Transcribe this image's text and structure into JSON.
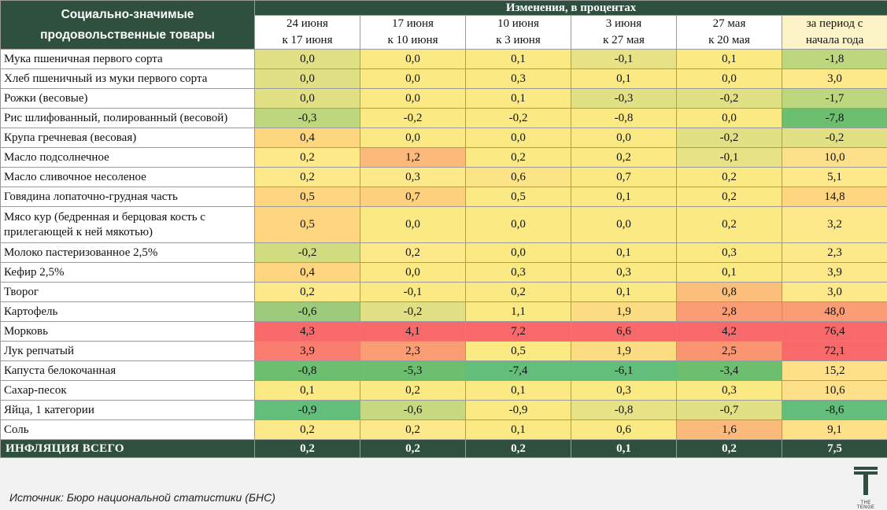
{
  "header": {
    "goods_title": "Социально-значимые продовольственные товары",
    "changes_title": "Изменения, в процентах",
    "periods": [
      {
        "line1": "24 июня",
        "line2": "к 17 июня"
      },
      {
        "line1": "17 июня",
        "line2": "к 10 июня"
      },
      {
        "line1": "10 июня",
        "line2": "к 3 июня"
      },
      {
        "line1": "3 июня",
        "line2": "к 27 мая"
      },
      {
        "line1": "27 мая",
        "line2": "к 20 мая"
      },
      {
        "line1": "за период с",
        "line2": "начала года"
      }
    ]
  },
  "rows": [
    {
      "name": "Мука пшеничная первого сорта",
      "values": [
        "0,0",
        "0,0",
        "0,1",
        "-0,1",
        "0,1",
        "-1,8"
      ],
      "colors": [
        "#e2e084",
        "#fbe984",
        "#fbe984",
        "#e8e287",
        "#fbe984",
        "#bdd77f"
      ]
    },
    {
      "name": "Хлеб пшеничный из муки первого сорта",
      "values": [
        "0,0",
        "0,0",
        "0,3",
        "0,1",
        "0,0",
        "3,0"
      ],
      "colors": [
        "#e2e084",
        "#fbe984",
        "#fbe984",
        "#fbe984",
        "#fbe984",
        "#fde88a"
      ]
    },
    {
      "name": "Рожки (весовые)",
      "values": [
        "0,0",
        "0,0",
        "0,1",
        "-0,3",
        "-0,2",
        "-1,7"
      ],
      "colors": [
        "#e2e084",
        "#fbe984",
        "#fbe984",
        "#e2e084",
        "#e2e084",
        "#bdd77f"
      ]
    },
    {
      "name": "Рис шлифованный, полированный (весовой)",
      "values": [
        "-0,3",
        "-0,2",
        "-0,2",
        "-0,8",
        "0,0",
        "-7,8"
      ],
      "colors": [
        "#bdd77f",
        "#fbe984",
        "#fbe984",
        "#fbe984",
        "#fbe984",
        "#6bbf6f"
      ]
    },
    {
      "name": "Крупа гречневая (весовая)",
      "values": [
        "0,4",
        "0,0",
        "0,0",
        "0,0",
        "-0,2",
        "-0,2"
      ],
      "colors": [
        "#fdd67f",
        "#fbe984",
        "#fbe984",
        "#fbe984",
        "#e2e084",
        "#e2e084"
      ]
    },
    {
      "name": "Масло подсолнечное",
      "values": [
        "0,2",
        "1,2",
        "0,2",
        "0,2",
        "-0,1",
        "10,0"
      ],
      "colors": [
        "#fde88a",
        "#fbb97b",
        "#fbe984",
        "#fbe984",
        "#e8e287",
        "#fde08a"
      ]
    },
    {
      "name": "Масло сливочное несоленое",
      "values": [
        "0,2",
        "0,3",
        "0,6",
        "0,7",
        "0,2",
        "5,1"
      ],
      "colors": [
        "#fde88a",
        "#fde88a",
        "#fce486",
        "#fbe984",
        "#fbe984",
        "#fde88a"
      ]
    },
    {
      "name": "Говядина лопаточно-грудная часть",
      "values": [
        "0,5",
        "0,7",
        "0,5",
        "0,1",
        "0,2",
        "14,8"
      ],
      "colors": [
        "#fdd67f",
        "#fcd07d",
        "#fbe984",
        "#fbe984",
        "#fbe984",
        "#fdd67f"
      ]
    },
    {
      "name": "Мясо кур (бедренная и берцовая кость с прилегающей к ней мякотью)",
      "values": [
        "0,5",
        "0,0",
        "0,0",
        "0,0",
        "0,2",
        "3,2"
      ],
      "colors": [
        "#fdd67f",
        "#fbe984",
        "#fbe984",
        "#fbe984",
        "#fbe984",
        "#fde88a"
      ]
    },
    {
      "name": "Молоко пастеризованное 2,5%",
      "values": [
        "-0,2",
        "0,2",
        "0,0",
        "0,1",
        "0,3",
        "2,3"
      ],
      "colors": [
        "#d1dc80",
        "#fde88a",
        "#fbe984",
        "#fbe984",
        "#fbe984",
        "#fde88a"
      ]
    },
    {
      "name": "Кефир 2,5%",
      "values": [
        "0,4",
        "0,0",
        "0,3",
        "0,3",
        "0,1",
        "3,9"
      ],
      "colors": [
        "#fdd67f",
        "#fbe984",
        "#fbe984",
        "#fbe984",
        "#fbe984",
        "#fde88a"
      ]
    },
    {
      "name": "Творог",
      "values": [
        "0,2",
        "-0,1",
        "0,2",
        "0,1",
        "0,8",
        "3,0"
      ],
      "colors": [
        "#fde88a",
        "#fbe984",
        "#fbe984",
        "#fbe984",
        "#fbbe7b",
        "#fde88a"
      ]
    },
    {
      "name": "Картофель",
      "values": [
        "-0,6",
        "-0,2",
        "1,1",
        "1,9",
        "2,8",
        "48,0"
      ],
      "colors": [
        "#9ccc7b",
        "#e2e084",
        "#fbe984",
        "#fbdc82",
        "#fb9d74",
        "#fb9d74"
      ]
    },
    {
      "name": "Морковь",
      "values": [
        "4,3",
        "4,1",
        "7,2",
        "6,6",
        "4,2",
        "76,4"
      ],
      "colors": [
        "#f8696b",
        "#f8696b",
        "#f8696b",
        "#f8696b",
        "#f8696b",
        "#f8696b"
      ]
    },
    {
      "name": "Лук репчатый",
      "values": [
        "3,9",
        "2,3",
        "0,5",
        "1,9",
        "2,5",
        "72,1"
      ],
      "colors": [
        "#f97e6f",
        "#fb9d74",
        "#fbe984",
        "#fbdc82",
        "#fa9572",
        "#f8696b"
      ]
    },
    {
      "name": "Капуста белокочанная",
      "values": [
        "-0,8",
        "-5,3",
        "-7,4",
        "-6,1",
        "-3,4",
        "15,2"
      ],
      "colors": [
        "#6bbf6f",
        "#6bbf6f",
        "#63be7b",
        "#63be7b",
        "#6bbf6f",
        "#fde088"
      ]
    },
    {
      "name": "Сахар-песок",
      "values": [
        "0,1",
        "0,2",
        "0,1",
        "0,3",
        "0,3",
        "10,6"
      ],
      "colors": [
        "#fbe984",
        "#fbe984",
        "#fbe984",
        "#fbe984",
        "#fbe984",
        "#fde088"
      ]
    },
    {
      "name": "Яйца, 1 категории",
      "values": [
        "-0,9",
        "-0,6",
        "-0,9",
        "-0,8",
        "-0,7",
        "-8,6"
      ],
      "colors": [
        "#63be7b",
        "#c6d980",
        "#fbe984",
        "#e8e287",
        "#e2e084",
        "#63be7b"
      ]
    },
    {
      "name": "Соль",
      "values": [
        "0,2",
        "0,2",
        "0,1",
        "0,6",
        "1,6",
        "9,1"
      ],
      "colors": [
        "#fde88a",
        "#fde88a",
        "#fbe984",
        "#fbe984",
        "#fbb97b",
        "#fde088"
      ]
    }
  ],
  "total": {
    "name": "ИНФЛЯЦИЯ ВСЕГО",
    "values": [
      "0,2",
      "0,2",
      "0,2",
      "0,1",
      "0,2",
      "7,5"
    ]
  },
  "source": "Источник: Бюро национальной статистики (БНС)",
  "logo_text": "THE TENGE",
  "colors": {
    "header_bg": "#2f4f3f"
  }
}
